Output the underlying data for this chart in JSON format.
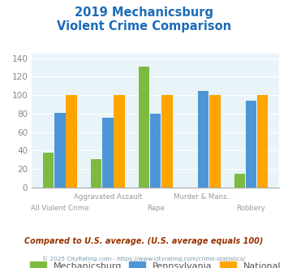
{
  "title_line1": "2019 Mechanicsburg",
  "title_line2": "Violent Crime Comparison",
  "categories": [
    "All Violent Crime",
    "Aggravated Assault",
    "Rape",
    "Murder & Mans...",
    "Robbery"
  ],
  "cat_top": [
    "",
    "Aggravated Assault",
    "",
    "Murder & Mans...",
    ""
  ],
  "cat_bot": [
    "All Violent Crime",
    "",
    "Rape",
    "",
    "Robbery"
  ],
  "mechanicsburg": [
    38,
    31,
    131,
    0,
    15
  ],
  "pennsylvania": [
    81,
    76,
    80,
    105,
    94
  ],
  "national": [
    100,
    100,
    100,
    100,
    100
  ],
  "color_mech": "#7CBB3F",
  "color_penn": "#4C96D7",
  "color_natl": "#FFA500",
  "ylim": [
    0,
    145
  ],
  "yticks": [
    0,
    20,
    40,
    60,
    80,
    100,
    120,
    140
  ],
  "legend_labels": [
    "Mechanicsburg",
    "Pennsylvania",
    "National"
  ],
  "footnote1": "Compared to U.S. average. (U.S. average equals 100)",
  "footnote2": "© 2025 CityRating.com - https://www.cityrating.com/crime-statistics/",
  "bg_color": "#E8F4F8",
  "title_color": "#1E6BB8",
  "footnote1_color": "#993300",
  "footnote2_color": "#7799AA"
}
